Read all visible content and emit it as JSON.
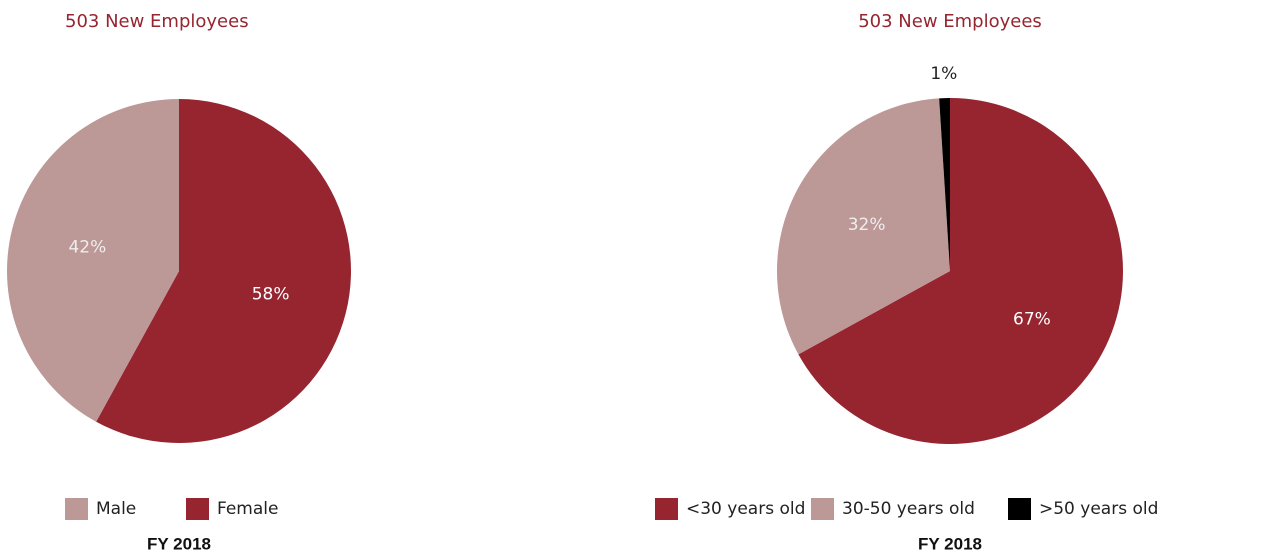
{
  "chart_data": [
    {
      "type": "pie",
      "title": "503 New Employees",
      "categories": [
        "Male",
        "Female"
      ],
      "values": [
        42,
        58
      ],
      "value_labels": [
        "42%",
        "58%"
      ],
      "colors": [
        "#bc9897",
        "#962530"
      ],
      "start": 1,
      "caption": "FY 2018"
    },
    {
      "type": "pie",
      "title": "503 New Employees",
      "categories": [
        "<30 years old",
        "30-50 years old",
        ">50 years old"
      ],
      "values": [
        67,
        32,
        1
      ],
      "value_labels": [
        "67%",
        "32%",
        "1%"
      ],
      "colors": [
        "#962530",
        "#bc9897",
        "#000000"
      ],
      "start": 0,
      "caption": "FY 2018"
    }
  ]
}
